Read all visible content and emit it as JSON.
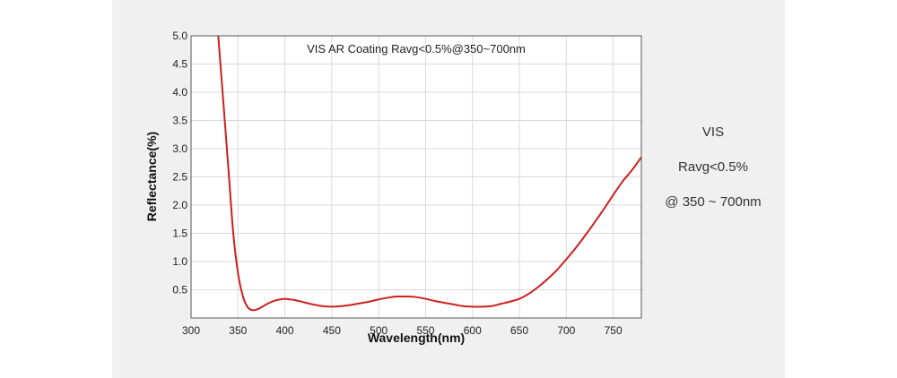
{
  "side_note": {
    "line1": "VIS",
    "line2": "Ravg<0.5%",
    "line3": "@ 350 ~ 700nm"
  },
  "colors": {
    "panel_background": "#f0f0f0",
    "curve": "#cc1f1f",
    "grid": "#d9d9d9",
    "axis": "#555555"
  },
  "chart_data": {
    "type": "line",
    "title": "VIS AR Coating Ravg<0.5%@350~700nm",
    "xlabel": "Wavelength(nm)",
    "ylabel": "Reflectance(%)",
    "xlim": [
      300,
      780
    ],
    "ylim": [
      0,
      5.0
    ],
    "x_ticks": [
      300,
      350,
      400,
      450,
      500,
      550,
      600,
      650,
      700,
      750
    ],
    "y_ticks": [
      0.5,
      1.0,
      1.5,
      2.0,
      2.5,
      3.0,
      3.5,
      4.0,
      4.5,
      5.0
    ],
    "grid": true,
    "series": [
      {
        "color": "#cc1f1f",
        "points": [
          [
            329,
            5.0
          ],
          [
            335,
            3.7
          ],
          [
            340,
            2.6
          ],
          [
            345,
            1.5
          ],
          [
            350,
            0.8
          ],
          [
            355,
            0.4
          ],
          [
            360,
            0.2
          ],
          [
            365,
            0.14
          ],
          [
            370,
            0.15
          ],
          [
            375,
            0.19
          ],
          [
            380,
            0.24
          ],
          [
            385,
            0.28
          ],
          [
            390,
            0.31
          ],
          [
            395,
            0.33
          ],
          [
            400,
            0.34
          ],
          [
            405,
            0.33
          ],
          [
            410,
            0.32
          ],
          [
            420,
            0.28
          ],
          [
            430,
            0.24
          ],
          [
            440,
            0.21
          ],
          [
            450,
            0.2
          ],
          [
            460,
            0.21
          ],
          [
            470,
            0.23
          ],
          [
            480,
            0.26
          ],
          [
            490,
            0.29
          ],
          [
            500,
            0.33
          ],
          [
            510,
            0.36
          ],
          [
            520,
            0.38
          ],
          [
            530,
            0.38
          ],
          [
            540,
            0.37
          ],
          [
            550,
            0.34
          ],
          [
            560,
            0.3
          ],
          [
            570,
            0.27
          ],
          [
            580,
            0.24
          ],
          [
            590,
            0.21
          ],
          [
            600,
            0.2
          ],
          [
            610,
            0.2
          ],
          [
            620,
            0.21
          ],
          [
            630,
            0.25
          ],
          [
            640,
            0.29
          ],
          [
            650,
            0.34
          ],
          [
            660,
            0.43
          ],
          [
            670,
            0.55
          ],
          [
            680,
            0.69
          ],
          [
            690,
            0.85
          ],
          [
            700,
            1.04
          ],
          [
            710,
            1.24
          ],
          [
            720,
            1.46
          ],
          [
            730,
            1.69
          ],
          [
            740,
            1.93
          ],
          [
            750,
            2.18
          ],
          [
            760,
            2.42
          ],
          [
            770,
            2.62
          ],
          [
            780,
            2.85
          ]
        ]
      }
    ]
  }
}
